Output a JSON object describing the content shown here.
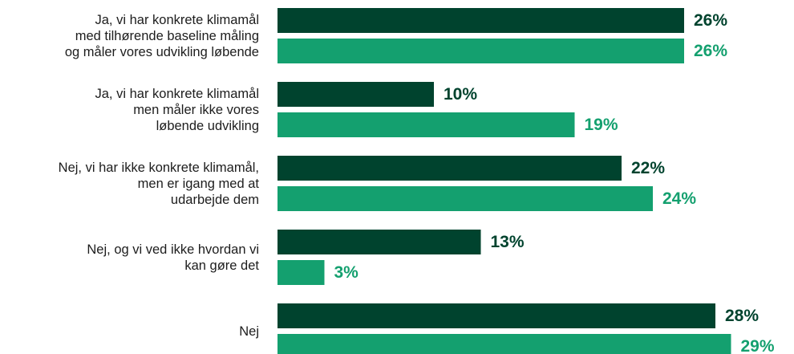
{
  "chart_data": {
    "type": "bar",
    "orientation": "horizontal",
    "categories": [
      "Ja, vi har konkrete klimamål\nmed tilhørende baseline måling\nog måler vores udvikling løbende",
      "Ja, vi har konkrete klimamål\nmen måler ikke vores\nløbende udvikling",
      "Nej, vi har ikke konkrete klimamål,\nmen er igang med at\nudarbejde dem",
      "Nej, og vi ved ikke hvordan vi\nkan gøre det",
      "Nej"
    ],
    "series": [
      {
        "color": "#00432e",
        "values": [
          26,
          10,
          22,
          13,
          28
        ],
        "value_labels": [
          "26%",
          "10%",
          "22%",
          "13%",
          "28%"
        ]
      },
      {
        "color": "#14a06f",
        "values": [
          26,
          19,
          24,
          3,
          29
        ],
        "value_labels": [
          "26%",
          "19%",
          "24%",
          "3%",
          "29%"
        ]
      }
    ]
  }
}
